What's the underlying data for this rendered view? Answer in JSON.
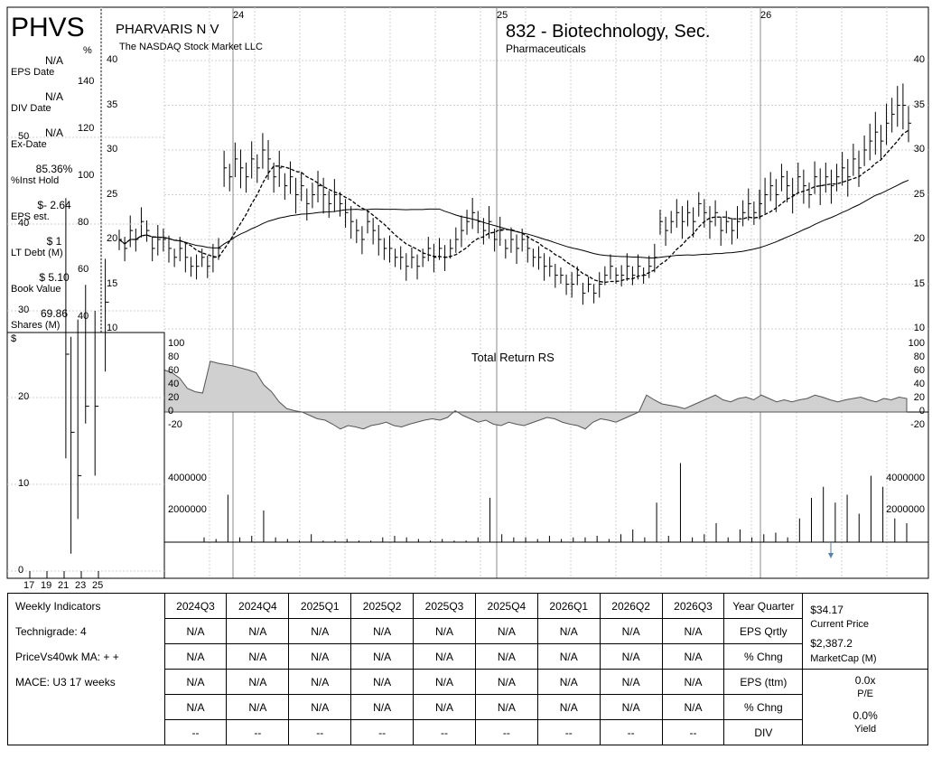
{
  "ticker": "PHVS",
  "company": {
    "name": "PHARVARIS N V",
    "exchange": "The NASDAQ Stock Market LLC"
  },
  "industry": {
    "title": "832 - Biotechnology, Sec.",
    "subtitle": "Pharmaceuticals"
  },
  "sidebar": [
    {
      "value": "N/A",
      "label": "EPS Date"
    },
    {
      "value": "N/A",
      "label": "DIV Date"
    },
    {
      "value": "N/A",
      "label": "Ex-Date"
    },
    {
      "value": "85.36%",
      "label": "%Inst Hold"
    },
    {
      "value": "$- 2.64",
      "label": "EPS est."
    },
    {
      "value": "$ 1",
      "label": "LT Debt (M)"
    },
    {
      "value": "$ 5.10",
      "label": "Book Value"
    },
    {
      "value": "69.86",
      "label": "Shares (M)"
    }
  ],
  "pct_axis": {
    "unit": "%",
    "ticks": [
      "140",
      "120",
      "100",
      "80",
      "60",
      "40"
    ]
  },
  "chart_data": [
    {
      "type": "line",
      "name": "weekly-price",
      "x_labels": [
        "24",
        "25",
        "26"
      ],
      "ylim": [
        10,
        40
      ],
      "yticks": [
        10,
        15,
        20,
        25,
        30,
        35,
        40
      ],
      "ma_short_label": "",
      "ma_long_label": "",
      "weekly_close": [
        20,
        19,
        21,
        20,
        22,
        21,
        19,
        20,
        20,
        19,
        18,
        19,
        18,
        17,
        17,
        18,
        17,
        18,
        19,
        28,
        27,
        29,
        28,
        27,
        29,
        28,
        30,
        29,
        27,
        28,
        26,
        27,
        25,
        26,
        24,
        25,
        26,
        25,
        24,
        25,
        24,
        23,
        22,
        21,
        20,
        22,
        21,
        20,
        19,
        19,
        18,
        18,
        17,
        18,
        17,
        18,
        19,
        18,
        19,
        18,
        19,
        20,
        21,
        22,
        23,
        22,
        21,
        22,
        20,
        21,
        19,
        20,
        19,
        20,
        19,
        18,
        18,
        17,
        17,
        16,
        16,
        15,
        15,
        16,
        14,
        15,
        14,
        15,
        16,
        17,
        16,
        16,
        17,
        16,
        17,
        16,
        17,
        18,
        22,
        21,
        22,
        23,
        22,
        23,
        22,
        24,
        23,
        22,
        23,
        21,
        22,
        21,
        22,
        23,
        24,
        23,
        24,
        25,
        26,
        25,
        27,
        26,
        25,
        27,
        26,
        25,
        27,
        26,
        27,
        26,
        27,
        28,
        27,
        29,
        28,
        30,
        31,
        32,
        31,
        33,
        34,
        35,
        35,
        33
      ]
    },
    {
      "type": "area",
      "name": "Total Return RS",
      "title": "Total Return RS",
      "ylim": [
        -40,
        100
      ],
      "yticks": [
        100,
        80,
        60,
        40,
        20,
        0,
        -20
      ],
      "values": [
        62,
        58,
        50,
        35,
        30,
        28,
        75,
        72,
        70,
        68,
        65,
        62,
        58,
        40,
        30,
        15,
        5,
        2,
        0,
        -5,
        -10,
        -12,
        -18,
        -25,
        -20,
        -22,
        -25,
        -20,
        -18,
        -15,
        -20,
        -22,
        -18,
        -15,
        -12,
        -10,
        -12,
        -8,
        2,
        -5,
        -10,
        -15,
        -12,
        -18,
        -20,
        -15,
        -18,
        -20,
        -16,
        -12,
        -8,
        -10,
        -15,
        -18,
        -20,
        -25,
        -15,
        -10,
        -12,
        -15,
        -10,
        -5,
        0,
        25,
        18,
        12,
        10,
        8,
        5,
        10,
        15,
        20,
        25,
        18,
        15,
        20,
        22,
        18,
        25,
        20,
        15,
        18,
        15,
        18,
        20,
        25,
        22,
        18,
        15,
        18,
        20,
        22,
        18,
        15,
        20,
        18,
        22,
        20
      ]
    },
    {
      "type": "bar",
      "name": "volume",
      "yticks": [
        2000000,
        4000000
      ],
      "ytick_labels": [
        "2000000",
        "4000000"
      ],
      "values": [
        300000,
        200000,
        3000000,
        300000,
        400000,
        2000000,
        300000,
        200000,
        100000,
        500000,
        100000,
        100000,
        200000,
        100000,
        100000,
        300000,
        400000,
        300000,
        200000,
        100000,
        200000,
        100000,
        100000,
        300000,
        2800000,
        500000,
        300000,
        300000,
        200000,
        400000,
        200000,
        300000,
        300000,
        400000,
        200000,
        500000,
        800000,
        300000,
        2500000,
        400000,
        5000000,
        300000,
        500000,
        1200000,
        300000,
        800000,
        300000,
        500000,
        600000,
        300000,
        1500000,
        2800000,
        3500000,
        2500000,
        3000000,
        1800000,
        4200000,
        3500000,
        1500000,
        1200000
      ]
    },
    {
      "type": "bar",
      "name": "weekly-inset",
      "ylim": [
        0,
        55
      ],
      "yticks": [
        0,
        10,
        20,
        30,
        40,
        50
      ],
      "x_labels": [
        "17",
        "19",
        "21",
        "23",
        "25"
      ],
      "y_unit": "$",
      "bars": [
        {
          "x": 21.2,
          "high": 43,
          "low": 13,
          "close": 25
        },
        {
          "x": 21.8,
          "high": 27,
          "low": 2,
          "close": 16
        },
        {
          "x": 22.6,
          "high": 29,
          "low": 6,
          "close": 11
        },
        {
          "x": 23.5,
          "high": 33,
          "low": 17,
          "close": 19
        },
        {
          "x": 24.6,
          "high": 30,
          "low": 11,
          "close": 19
        },
        {
          "x": 25.8,
          "high": 36,
          "low": 23,
          "close": 31
        }
      ]
    }
  ],
  "table": {
    "header_label": "Weekly Indicators",
    "quarters": [
      "2024Q3",
      "2024Q4",
      "2025Q1",
      "2025Q2",
      "2025Q3",
      "2025Q4",
      "2026Q1",
      "2026Q2",
      "2026Q3"
    ],
    "year_quarter_label": "Year Quarter",
    "rows": [
      {
        "label": "Technigrade: 4",
        "values": [
          "N/A",
          "N/A",
          "N/A",
          "N/A",
          "N/A",
          "N/A",
          "N/A",
          "N/A",
          "N/A"
        ],
        "metric": "EPS Qrtly"
      },
      {
        "label": "PriceVs40wk MA:  + +",
        "values": [
          "N/A",
          "N/A",
          "N/A",
          "N/A",
          "N/A",
          "N/A",
          "N/A",
          "N/A",
          "N/A"
        ],
        "metric": "% Chng"
      },
      {
        "label": "MACE: U3  17 weeks",
        "values": [
          "N/A",
          "N/A",
          "N/A",
          "N/A",
          "N/A",
          "N/A",
          "N/A",
          "N/A",
          "N/A"
        ],
        "metric": "EPS (ttm)"
      },
      {
        "label": "",
        "values": [
          "N/A",
          "N/A",
          "N/A",
          "N/A",
          "N/A",
          "N/A",
          "N/A",
          "N/A",
          "N/A"
        ],
        "metric": "% Chng"
      },
      {
        "label": "",
        "values": [
          "--",
          "--",
          "--",
          "--",
          "--",
          "--",
          "--",
          "--",
          "--"
        ],
        "metric": "DIV"
      }
    ],
    "right": {
      "price": "$34.17",
      "price_label": "Current Price",
      "mktcap": "$2,387.2",
      "mktcap_label": "MarketCap (M)",
      "pe": "0.0x",
      "pe_label": "P/E",
      "yield": "0.0%",
      "yield_label": "Yield"
    }
  }
}
